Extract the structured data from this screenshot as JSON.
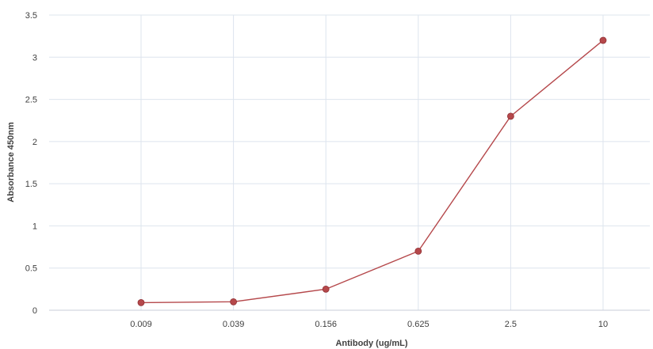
{
  "chart_data": {
    "type": "line",
    "title": "",
    "xlabel": "Antibody (ug/mL)",
    "ylabel": "Absorbance 450nm",
    "categories": [
      "0.009",
      "0.039",
      "0.156",
      "0.625",
      "2.5",
      "10"
    ],
    "series": [
      {
        "values": [
          0.09,
          0.1,
          0.25,
          0.7,
          2.3,
          3.2
        ],
        "color": "#b5484b"
      }
    ],
    "ylim": [
      0,
      3.5
    ],
    "yticks": [
      "0",
      "0.5",
      "1",
      "1.5",
      "2",
      "2.5",
      "3",
      "3.5"
    ],
    "grid": true,
    "legend": "none",
    "colors": {
      "grid": "#dde4ee",
      "axis": "#c8ced8",
      "text": "#404040",
      "series": "#b5484b"
    }
  }
}
